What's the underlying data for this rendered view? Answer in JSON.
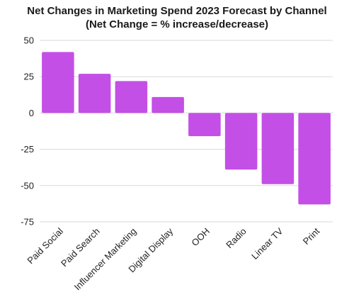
{
  "chart_data": {
    "type": "bar",
    "title": "Net Changes in Marketing Spend 2023 Forecast by Channel",
    "subtitle": "(Net Change = % increase/decrease)",
    "categories": [
      "Paid Social",
      "Paid Search",
      "Influencer Marketing",
      "Digital Display",
      "OOH",
      "Radio",
      "Linear TV",
      "Print"
    ],
    "values": [
      42,
      27,
      22,
      11,
      -16,
      -39,
      -49,
      -63
    ],
    "ylim": [
      -75,
      50
    ],
    "yticks": [
      50,
      25,
      0,
      -25,
      -50,
      -75
    ],
    "grid": true,
    "bar_color": "#c34fe6",
    "xlabel": "",
    "ylabel": ""
  }
}
